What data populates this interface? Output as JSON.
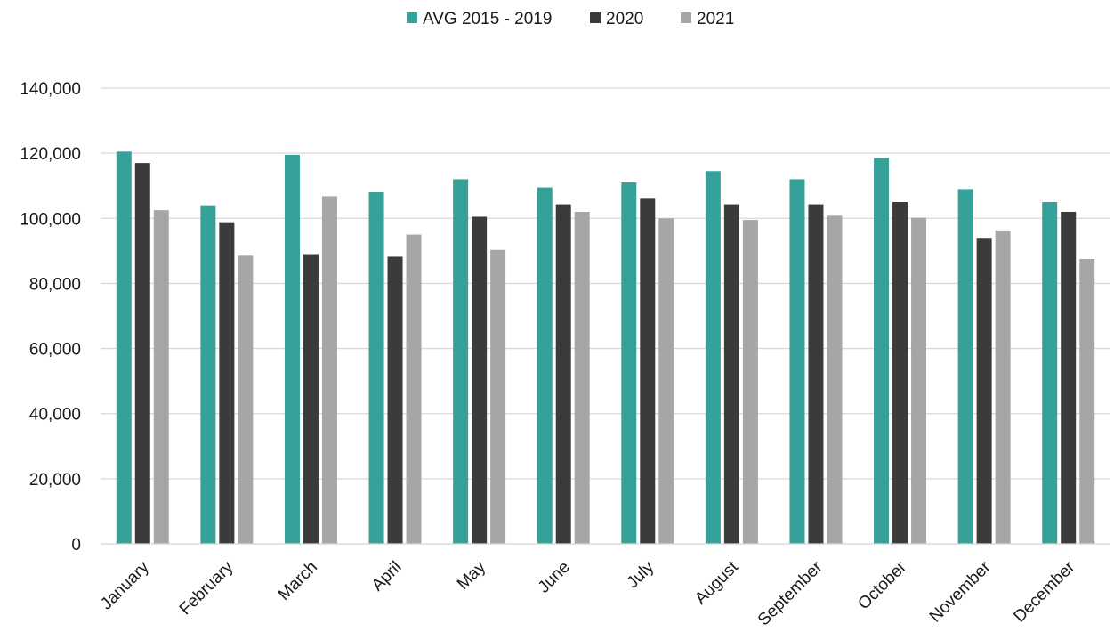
{
  "colors": {
    "avg": "#36a199",
    "y2020": "#3b3b3b",
    "y2021": "#a6a6a6",
    "grid": "#d9d9d9",
    "text": "#1a1a1a"
  },
  "chart_data": {
    "type": "bar",
    "title": "",
    "xlabel": "",
    "ylabel": "",
    "ylim": [
      0,
      140000
    ],
    "yticks": [
      0,
      20000,
      40000,
      60000,
      80000,
      100000,
      120000,
      140000
    ],
    "ytick_labels": [
      "0",
      "20,000",
      "40,000",
      "60,000",
      "80,000",
      "100,000",
      "120,000",
      "140,000"
    ],
    "grid": true,
    "legend_position": "top-center",
    "categories": [
      "January",
      "February",
      "March",
      "April",
      "May",
      "June",
      "July",
      "August",
      "September",
      "October",
      "November",
      "December"
    ],
    "series": [
      {
        "name": "AVG 2015 - 2019",
        "color": "#36a199",
        "values": [
          120500,
          104000,
          119500,
          108000,
          112000,
          109500,
          111000,
          114500,
          112000,
          118500,
          109000,
          105000
        ]
      },
      {
        "name": "2020",
        "color": "#3b3b3b",
        "values": [
          117000,
          98800,
          89000,
          88200,
          100500,
          104300,
          106000,
          104300,
          104300,
          105000,
          94000,
          102000
        ]
      },
      {
        "name": "2021",
        "color": "#a6a6a6",
        "values": [
          102500,
          88500,
          106800,
          95000,
          90300,
          102000,
          100000,
          99500,
          100800,
          100200,
          96300,
          87500
        ]
      }
    ]
  }
}
